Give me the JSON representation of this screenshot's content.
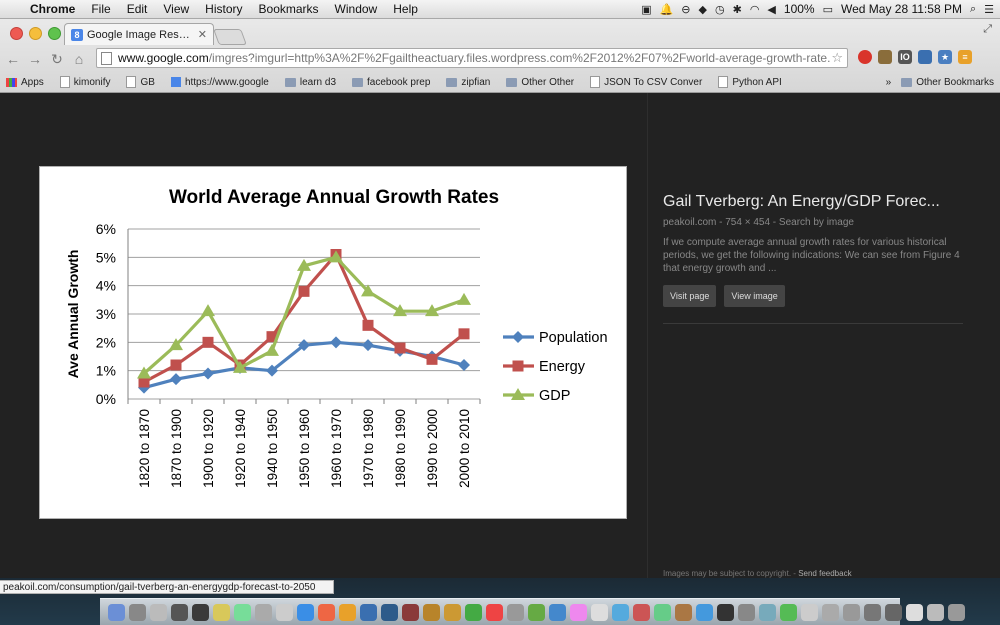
{
  "menubar": {
    "app": "Chrome",
    "items": [
      "File",
      "Edit",
      "View",
      "History",
      "Bookmarks",
      "Window",
      "Help"
    ],
    "battery": "100%",
    "clock": "Wed May 28  11:58 PM"
  },
  "tab": {
    "title": "Google Image Result for ht",
    "favicon_letter": "8"
  },
  "address": {
    "host": "www.google.com",
    "path": "/imgres?imgurl=http%3A%2F%2Fgailtheactuary.files.wordpress.com%2F2012%2F07%2Fworld-average-growth-rate..."
  },
  "bookmarks": {
    "items": [
      {
        "label": "Apps",
        "icon": "apps"
      },
      {
        "label": "kimonify",
        "icon": "page"
      },
      {
        "label": "GB",
        "icon": "page"
      },
      {
        "label": "https://www.google",
        "icon": "g"
      },
      {
        "label": "learn d3",
        "icon": "folder"
      },
      {
        "label": "facebook prep",
        "icon": "folder"
      },
      {
        "label": "zipfian",
        "icon": "folder"
      },
      {
        "label": "Other Other",
        "icon": "folder"
      },
      {
        "label": "JSON To CSV Conver",
        "icon": "page"
      },
      {
        "label": "Python API",
        "icon": "page"
      }
    ],
    "overflow": "»",
    "other": "Other Bookmarks"
  },
  "result": {
    "title": "Gail Tverberg: An Energy/GDP Forec...",
    "meta": "peakoil.com - 754 × 454 - Search by image",
    "description": "If we compute average annual growth rates for various historical periods, we get the following indications: We can see from Figure 4 that energy growth and ...",
    "visit_label": "Visit page",
    "view_label": "View image",
    "copyright": "Images may be subject to copyright.",
    "feedback": "Send feedback"
  },
  "status_url": "peakoil.com/consumption/gail-tverberg-an-energygdp-forecast-to-2050",
  "chart_data": {
    "type": "line",
    "title": "World Average Annual Growth Rates",
    "xlabel": "",
    "ylabel": "Ave Annual Growth",
    "ylim": [
      0,
      6
    ],
    "yticks": [
      "0%",
      "1%",
      "2%",
      "3%",
      "4%",
      "5%",
      "6%"
    ],
    "grid": true,
    "legend_position": "right",
    "categories": [
      "1820 to 1870",
      "1870 to 1900",
      "1900 to 1920",
      "1920 to 1940",
      "1940 to 1950",
      "1950 to 1960",
      "1960 to 1970",
      "1970 to 1980",
      "1980 to 1990",
      "1990 to 2000",
      "2000 to 2010"
    ],
    "series": [
      {
        "name": "Population",
        "color": "#4f81bd",
        "marker": "diamond",
        "values": [
          0.4,
          0.7,
          0.9,
          1.1,
          1.0,
          1.9,
          2.0,
          1.9,
          1.7,
          1.5,
          1.2
        ]
      },
      {
        "name": "Energy",
        "color": "#c0504d",
        "marker": "square",
        "values": [
          0.6,
          1.2,
          2.0,
          1.2,
          2.2,
          3.8,
          5.1,
          2.6,
          1.8,
          1.4,
          2.3
        ]
      },
      {
        "name": "GDP",
        "color": "#9bbb59",
        "marker": "triangle",
        "values": [
          0.9,
          1.9,
          3.1,
          1.1,
          1.7,
          4.7,
          5.0,
          3.8,
          3.1,
          3.1,
          3.5
        ]
      }
    ]
  }
}
